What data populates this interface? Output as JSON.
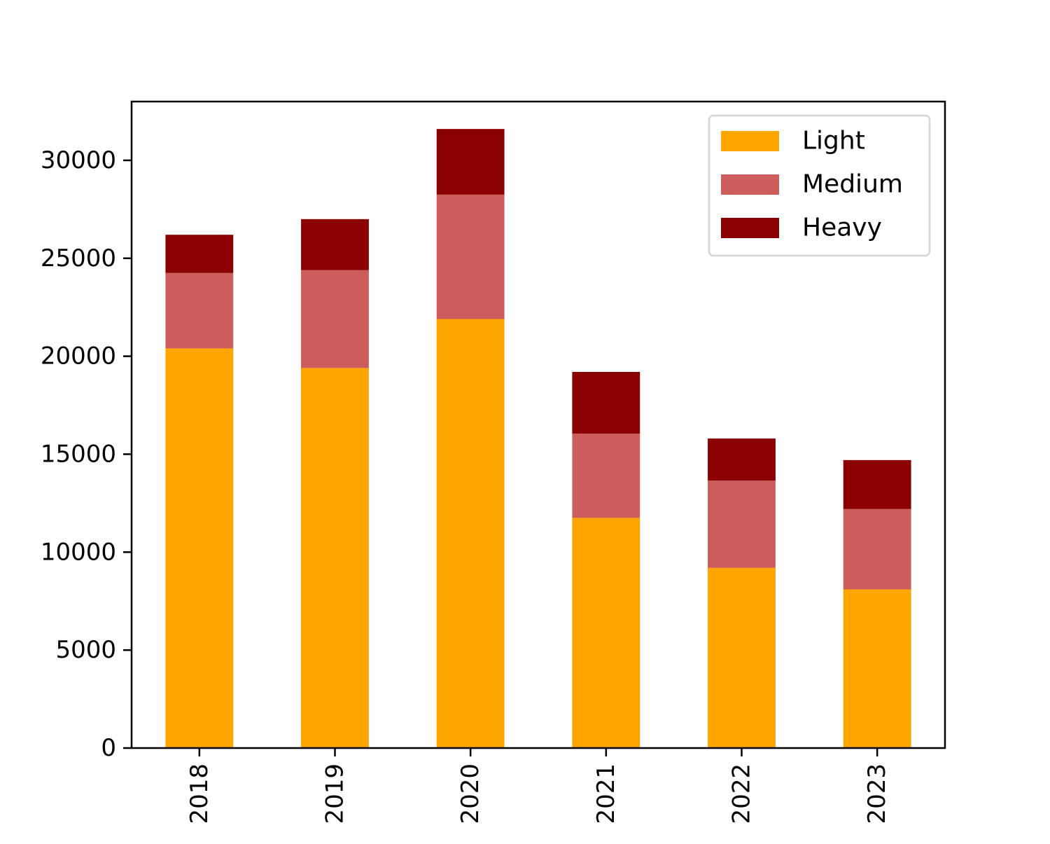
{
  "chart_data": {
    "type": "bar",
    "stacked": true,
    "categories": [
      "2018",
      "2019",
      "2020",
      "2021",
      "2022",
      "2023"
    ],
    "series": [
      {
        "name": "Light",
        "color": "#FFA500",
        "values": [
          20400,
          19400,
          21900,
          11750,
          9200,
          8100
        ]
      },
      {
        "name": "Medium",
        "color": "#CD5C5C",
        "values": [
          3850,
          5000,
          6350,
          4300,
          4450,
          4100
        ]
      },
      {
        "name": "Heavy",
        "color": "#8B0000",
        "values": [
          1950,
          2600,
          3350,
          3150,
          2150,
          2500
        ]
      }
    ],
    "title": "",
    "xlabel": "",
    "ylabel": "",
    "ylim": [
      0,
      33000
    ],
    "yticks": [
      0,
      5000,
      10000,
      15000,
      20000,
      25000,
      30000
    ],
    "grid": false,
    "legend_position": "top-right",
    "x_tick_rotation": "vertical"
  }
}
